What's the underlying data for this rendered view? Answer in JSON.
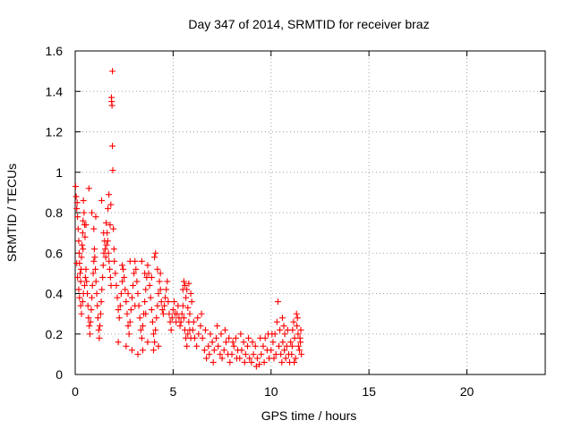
{
  "chart_data": {
    "type": "scatter",
    "title": "Day 347 of 2014, SRMTID for receiver braz",
    "xlabel": "GPS time / hours",
    "ylabel": "SRMTID / TECUs",
    "xlim": [
      0,
      24
    ],
    "ylim": [
      0,
      1.6
    ],
    "xticks": [
      0,
      5,
      10,
      15,
      20
    ],
    "xtick_labels": [
      "0",
      "5",
      "10",
      "15",
      "20"
    ],
    "yticks": [
      0,
      0.2,
      0.4,
      0.6,
      0.8,
      1,
      1.2,
      1.4,
      1.6
    ],
    "ytick_labels": [
      "0",
      "0.2",
      "0.4",
      "0.6",
      "0.8",
      "1",
      "1.2",
      "1.4",
      "1.6"
    ],
    "grid": true,
    "marker": "+",
    "color": "#ff0000",
    "series": [
      {
        "name": "SRMTID",
        "points": [
          [
            0.02,
            0.93
          ],
          [
            0.05,
            0.88
          ],
          [
            0.08,
            0.82
          ],
          [
            0.1,
            0.85
          ],
          [
            0.12,
            0.78
          ],
          [
            0.15,
            0.72
          ],
          [
            0.18,
            0.66
          ],
          [
            0.2,
            0.6
          ],
          [
            0.22,
            0.55
          ],
          [
            0.25,
            0.5
          ],
          [
            0.28,
            0.46
          ],
          [
            0.3,
            0.52
          ],
          [
            0.32,
            0.58
          ],
          [
            0.35,
            0.64
          ],
          [
            0.38,
            0.7
          ],
          [
            0.4,
            0.76
          ],
          [
            0.42,
            0.86
          ],
          [
            0.45,
            0.8
          ],
          [
            0.48,
            0.74
          ],
          [
            0.5,
            0.68
          ],
          [
            0.08,
            0.55
          ],
          [
            0.12,
            0.48
          ],
          [
            0.18,
            0.42
          ],
          [
            0.22,
            0.38
          ],
          [
            0.28,
            0.34
          ],
          [
            0.32,
            0.3
          ],
          [
            0.38,
            0.36
          ],
          [
            0.42,
            0.4
          ],
          [
            0.48,
            0.44
          ],
          [
            0.52,
            0.48
          ],
          [
            0.55,
            0.52
          ],
          [
            0.58,
            0.46
          ],
          [
            0.62,
            0.4
          ],
          [
            0.65,
            0.34
          ],
          [
            0.68,
            0.28
          ],
          [
            0.72,
            0.24
          ],
          [
            0.75,
            0.2
          ],
          [
            0.78,
            0.26
          ],
          [
            0.82,
            0.32
          ],
          [
            0.85,
            0.38
          ],
          [
            0.88,
            0.44
          ],
          [
            0.92,
            0.5
          ],
          [
            0.95,
            0.56
          ],
          [
            0.98,
            0.62
          ],
          [
            1.0,
            0.58
          ],
          [
            1.03,
            0.52
          ],
          [
            1.06,
            0.46
          ],
          [
            1.1,
            0.4
          ],
          [
            1.13,
            0.34
          ],
          [
            1.16,
            0.28
          ],
          [
            1.2,
            0.22
          ],
          [
            1.23,
            0.18
          ],
          [
            1.26,
            0.24
          ],
          [
            1.3,
            0.3
          ],
          [
            1.33,
            0.36
          ],
          [
            1.36,
            0.42
          ],
          [
            1.4,
            0.48
          ],
          [
            1.43,
            0.54
          ],
          [
            1.46,
            0.6
          ],
          [
            1.5,
            0.66
          ],
          [
            1.53,
            0.62
          ],
          [
            1.56,
            0.58
          ],
          [
            1.6,
            0.64
          ],
          [
            1.63,
            0.7
          ],
          [
            1.66,
            0.66
          ],
          [
            1.7,
            0.6
          ],
          [
            1.73,
            0.56
          ],
          [
            1.76,
            0.52
          ],
          [
            1.8,
            0.48
          ],
          [
            1.83,
            0.44
          ],
          [
            0.7,
            0.92
          ],
          [
            0.85,
            0.8
          ],
          [
            0.55,
            0.74
          ],
          [
            0.4,
            0.62
          ],
          [
            0.95,
            0.72
          ],
          [
            1.05,
            0.78
          ],
          [
            1.35,
            0.86
          ],
          [
            1.45,
            0.7
          ],
          [
            1.58,
            0.75
          ],
          [
            1.67,
            0.82
          ],
          [
            1.72,
            0.89
          ],
          [
            1.78,
            0.74
          ],
          [
            1.82,
            0.84
          ],
          [
            1.85,
            1.37
          ],
          [
            1.86,
            1.35
          ],
          [
            1.88,
            1.33
          ],
          [
            1.9,
            1.5
          ],
          [
            1.9,
            1.13
          ],
          [
            1.92,
            1.01
          ],
          [
            1.95,
            0.72
          ],
          [
            1.98,
            0.62
          ],
          [
            2.0,
            0.56
          ],
          [
            2.05,
            0.5
          ],
          [
            2.1,
            0.44
          ],
          [
            2.15,
            0.38
          ],
          [
            2.2,
            0.32
          ],
          [
            2.25,
            0.28
          ],
          [
            2.3,
            0.34
          ],
          [
            2.35,
            0.4
          ],
          [
            2.4,
            0.46
          ],
          [
            2.45,
            0.52
          ],
          [
            2.5,
            0.48
          ],
          [
            2.55,
            0.42
          ],
          [
            2.6,
            0.36
          ],
          [
            2.65,
            0.3
          ],
          [
            2.7,
            0.24
          ],
          [
            2.75,
            0.2
          ],
          [
            2.8,
            0.26
          ],
          [
            2.85,
            0.32
          ],
          [
            2.9,
            0.38
          ],
          [
            2.95,
            0.44
          ],
          [
            3.0,
            0.5
          ],
          [
            3.05,
            0.56
          ],
          [
            3.1,
            0.52
          ],
          [
            3.15,
            0.46
          ],
          [
            3.2,
            0.4
          ],
          [
            3.25,
            0.34
          ],
          [
            3.3,
            0.28
          ],
          [
            3.35,
            0.22
          ],
          [
            3.4,
            0.18
          ],
          [
            3.45,
            0.24
          ],
          [
            3.5,
            0.3
          ],
          [
            3.55,
            0.36
          ],
          [
            3.6,
            0.42
          ],
          [
            3.65,
            0.48
          ],
          [
            3.7,
            0.54
          ],
          [
            3.75,
            0.5
          ],
          [
            3.8,
            0.44
          ],
          [
            3.85,
            0.38
          ],
          [
            3.9,
            0.32
          ],
          [
            3.95,
            0.26
          ],
          [
            4.0,
            0.2
          ],
          [
            4.05,
            0.16
          ],
          [
            4.1,
            0.22
          ],
          [
            4.15,
            0.28
          ],
          [
            4.2,
            0.34
          ],
          [
            4.25,
            0.4
          ],
          [
            4.3,
            0.46
          ],
          [
            4.35,
            0.42
          ],
          [
            4.4,
            0.36
          ],
          [
            2.2,
            0.16
          ],
          [
            2.6,
            0.14
          ],
          [
            2.9,
            0.12
          ],
          [
            3.2,
            0.1
          ],
          [
            3.45,
            0.12
          ],
          [
            3.7,
            0.16
          ],
          [
            4.0,
            0.12
          ],
          [
            4.25,
            0.14
          ],
          [
            2.4,
            0.54
          ],
          [
            2.8,
            0.56
          ],
          [
            3.4,
            0.56
          ],
          [
            3.55,
            0.5
          ],
          [
            4.05,
            0.58
          ],
          [
            4.1,
            0.6
          ],
          [
            3.9,
            0.48
          ],
          [
            4.2,
            0.52
          ],
          [
            4.35,
            0.5
          ],
          [
            2.7,
            0.4
          ],
          [
            3.05,
            0.34
          ],
          [
            3.6,
            0.3
          ],
          [
            4.45,
            0.32
          ],
          [
            4.5,
            0.3
          ],
          [
            4.55,
            0.34
          ],
          [
            4.6,
            0.38
          ],
          [
            4.65,
            0.42
          ],
          [
            4.7,
            0.46
          ],
          [
            4.75,
            0.36
          ],
          [
            4.8,
            0.3
          ],
          [
            4.85,
            0.26
          ],
          [
            4.9,
            0.22
          ],
          [
            4.95,
            0.28
          ],
          [
            5.0,
            0.32
          ],
          [
            5.05,
            0.36
          ],
          [
            5.1,
            0.3
          ],
          [
            5.15,
            0.26
          ],
          [
            5.2,
            0.3
          ],
          [
            5.25,
            0.34
          ],
          [
            5.3,
            0.28
          ],
          [
            5.35,
            0.24
          ],
          [
            5.4,
            0.26
          ],
          [
            5.45,
            0.3
          ],
          [
            5.5,
            0.34
          ],
          [
            5.55,
            0.28
          ],
          [
            5.6,
            0.22
          ],
          [
            5.65,
            0.18
          ],
          [
            5.7,
            0.14
          ],
          [
            5.75,
            0.2
          ],
          [
            5.8,
            0.26
          ],
          [
            5.85,
            0.22
          ],
          [
            5.9,
            0.18
          ],
          [
            5.55,
            0.46
          ],
          [
            5.6,
            0.44
          ],
          [
            5.7,
            0.42
          ],
          [
            5.8,
            0.45
          ],
          [
            5.9,
            0.4
          ],
          [
            5.95,
            0.36
          ],
          [
            5.5,
            0.42
          ],
          [
            5.65,
            0.38
          ],
          [
            5.75,
            0.33
          ],
          [
            5.85,
            0.3
          ],
          [
            6.0,
            0.22
          ],
          [
            6.1,
            0.18
          ],
          [
            6.2,
            0.14
          ],
          [
            6.3,
            0.2
          ],
          [
            6.4,
            0.24
          ],
          [
            6.5,
            0.18
          ],
          [
            6.6,
            0.12
          ],
          [
            6.7,
            0.08
          ],
          [
            6.8,
            0.14
          ],
          [
            6.9,
            0.2
          ],
          [
            7.0,
            0.16
          ],
          [
            7.1,
            0.12
          ],
          [
            7.2,
            0.18
          ],
          [
            7.3,
            0.14
          ],
          [
            7.4,
            0.1
          ],
          [
            7.5,
            0.08
          ],
          [
            7.6,
            0.12
          ],
          [
            7.7,
            0.16
          ],
          [
            7.8,
            0.1
          ],
          [
            7.9,
            0.06
          ],
          [
            8.0,
            0.1
          ],
          [
            8.1,
            0.14
          ],
          [
            8.2,
            0.18
          ],
          [
            8.3,
            0.12
          ],
          [
            8.4,
            0.08
          ],
          [
            8.5,
            0.12
          ],
          [
            8.6,
            0.16
          ],
          [
            8.7,
            0.1
          ],
          [
            8.8,
            0.14
          ],
          [
            8.9,
            0.08
          ],
          [
            9.0,
            0.06
          ],
          [
            9.1,
            0.1
          ],
          [
            9.2,
            0.14
          ],
          [
            9.3,
            0.08
          ],
          [
            9.4,
            0.05
          ],
          [
            9.5,
            0.1
          ],
          [
            9.6,
            0.14
          ],
          [
            9.7,
            0.18
          ],
          [
            9.8,
            0.12
          ],
          [
            9.9,
            0.08
          ],
          [
            6.05,
            0.26
          ],
          [
            6.25,
            0.28
          ],
          [
            6.45,
            0.3
          ],
          [
            6.65,
            0.22
          ],
          [
            6.85,
            0.1
          ],
          [
            7.05,
            0.06
          ],
          [
            7.25,
            0.24
          ],
          [
            7.45,
            0.2
          ],
          [
            7.65,
            0.22
          ],
          [
            7.85,
            0.18
          ],
          [
            8.05,
            0.16
          ],
          [
            8.25,
            0.08
          ],
          [
            8.45,
            0.2
          ],
          [
            8.65,
            0.06
          ],
          [
            8.85,
            0.18
          ],
          [
            9.05,
            0.16
          ],
          [
            9.25,
            0.04
          ],
          [
            9.45,
            0.18
          ],
          [
            9.65,
            0.06
          ],
          [
            9.85,
            0.2
          ],
          [
            10.0,
            0.12
          ],
          [
            10.1,
            0.16
          ],
          [
            10.2,
            0.2
          ],
          [
            10.3,
            0.26
          ],
          [
            10.35,
            0.36
          ],
          [
            10.4,
            0.14
          ],
          [
            10.5,
            0.1
          ],
          [
            10.6,
            0.16
          ],
          [
            10.7,
            0.2
          ],
          [
            10.8,
            0.14
          ],
          [
            10.9,
            0.1
          ],
          [
            11.0,
            0.16
          ],
          [
            11.1,
            0.22
          ],
          [
            11.2,
            0.18
          ],
          [
            11.3,
            0.3
          ],
          [
            11.35,
            0.28
          ],
          [
            11.4,
            0.14
          ],
          [
            11.45,
            0.12
          ],
          [
            11.5,
            0.16
          ],
          [
            11.55,
            0.1
          ],
          [
            10.05,
            0.2
          ],
          [
            10.15,
            0.08
          ],
          [
            10.25,
            0.1
          ],
          [
            10.45,
            0.22
          ],
          [
            10.55,
            0.06
          ],
          [
            10.65,
            0.24
          ],
          [
            10.75,
            0.08
          ],
          [
            10.85,
            0.22
          ],
          [
            10.95,
            0.06
          ],
          [
            11.05,
            0.1
          ],
          [
            11.15,
            0.26
          ],
          [
            11.25,
            0.08
          ],
          [
            11.32,
            0.24
          ],
          [
            11.38,
            0.2
          ],
          [
            11.48,
            0.18
          ],
          [
            11.52,
            0.22
          ],
          [
            10.58,
            0.28
          ],
          [
            10.68,
            0.12
          ],
          [
            11.08,
            0.14
          ],
          [
            11.18,
            0.06
          ]
        ]
      }
    ]
  }
}
